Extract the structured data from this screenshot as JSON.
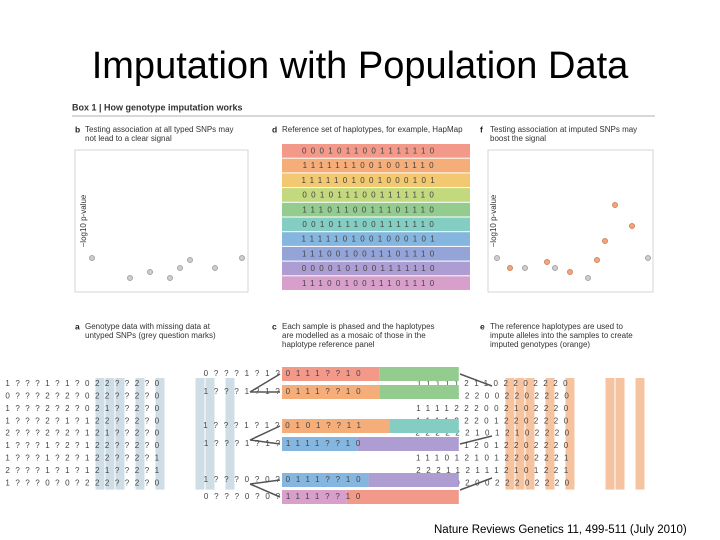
{
  "title": "Imputation with Population Data",
  "box_title": "Box 1 | How genotype imputation works",
  "panels": {
    "b": {
      "letter": "b",
      "lines": [
        "Testing association at all typed SNPs may",
        "not lead to a clear signal"
      ],
      "ylabel": "−log10 p-value"
    },
    "d": {
      "letter": "d",
      "lines": [
        "Reference set of haplotypes, for example, HapMap"
      ],
      "rows": [
        "0001011001111110",
        "1111111001001110",
        "1111101001000101",
        "0010111001111110",
        "1110110011101110",
        "0010111001111110",
        "1111101001000101",
        "1110010011101110",
        "0000101001111110",
        "1110010011101110"
      ],
      "colors": [
        "#f2998a",
        "#f5ad7a",
        "#f2c870",
        "#c3d97e",
        "#93cc8e",
        "#84cdc2",
        "#85b6e0",
        "#95a4d8",
        "#ad9dd2",
        "#d79fca"
      ]
    },
    "f": {
      "letter": "f",
      "lines": [
        "Testing association at imputed SNPs may",
        "boost the signal"
      ],
      "ylabel": "−log10 p-value"
    },
    "a": {
      "letter": "a",
      "lines": [
        "Genotype data with missing data at",
        "untyped SNPs (grey question marks)"
      ],
      "rows": [
        "1???1?1?022??2?0",
        "0???2?2?022??2?0",
        "1???2?2?021??2?0",
        "1???2?1?122??2?0",
        "2???2?2?121??2?0",
        "1???1?2?122??2?0",
        "1???1?2?122??2?1",
        "2???1?1?121??2?1",
        "1???0?0?222??2?0"
      ]
    },
    "c": {
      "letter": "c",
      "lines": [
        "Each sample is phased and the haplotypes",
        "are modelled as a mosaic of those in the",
        "haplotype reference panel"
      ],
      "rows": [
        {
          "text": "0???1?1?0111??10",
          "colors": [
            "#f2998a",
            "#93cc8e"
          ]
        },
        {
          "text": "1???1?1?0111??10",
          "colors": [
            "#f5ad7a",
            "#93cc8e"
          ]
        },
        {
          "text": "1???1?1?0101??11",
          "colors": [
            "#f5ad7a",
            "#84cdc2"
          ]
        },
        {
          "text": "1???1?1?1111??10",
          "colors": [
            "#85b6e0",
            "#ad9dd2"
          ]
        },
        {
          "text": "1???0?0?0111??10",
          "colors": [
            "#85b6e0",
            "#ad9dd2"
          ]
        },
        {
          "text": "0???0?0?1111??10",
          "colors": [
            "#d79fca",
            "#f2998a"
          ]
        }
      ]
    },
    "e": {
      "letter": "e",
      "lines": [
        "The reference haplotypes are used to",
        "impute alleles into the samples to create",
        "imputed genotypes (orange)"
      ],
      "rows": [
        "1111121102202220",
        "0011222002202220",
        "1111222002102220",
        "1111222012202220",
        "2222221012102220",
        "1111212012202220",
        "1110121012202221",
        "2221121112101221",
        "1220020022202220"
      ]
    }
  },
  "citation": "Nature Reviews Genetics 11, 499-511 (July 2010)"
}
